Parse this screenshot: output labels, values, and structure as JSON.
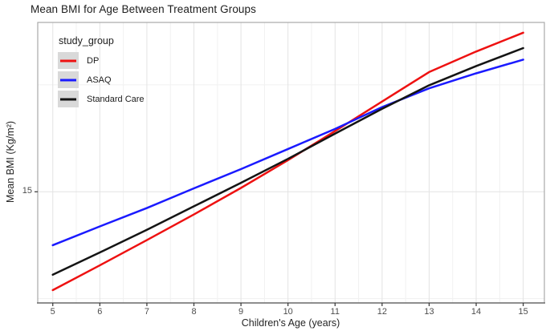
{
  "title": "Mean BMI for Age Between Treatment Groups",
  "legend": {
    "title": "study_group",
    "items": [
      {
        "label": "DP",
        "color": "#ee1111"
      },
      {
        "label": "ASAQ",
        "color": "#1a1aff"
      },
      {
        "label": "Standard Care",
        "color": "#141414"
      }
    ]
  },
  "axes": {
    "x_label": "Children's Age (years)",
    "y_label": "Mean BMI (Kg/m²)",
    "x_ticks": [
      5,
      6,
      7,
      8,
      9,
      10,
      11,
      12,
      13,
      14,
      15
    ],
    "y_ticks": [
      15
    ]
  },
  "chart_data": {
    "type": "line",
    "title": "Mean BMI for Age Between Treatment Groups",
    "xlabel": "Children's Age (years)",
    "ylabel": "Mean BMI (Kg/m²)",
    "x": [
      5,
      6,
      7,
      8,
      9,
      10,
      11,
      12,
      13,
      14,
      15
    ],
    "series": [
      {
        "name": "DP",
        "color": "#ee1111",
        "values": [
          12.7,
          13.28,
          13.87,
          14.47,
          15.09,
          15.74,
          16.42,
          17.11,
          17.8,
          18.28,
          18.72
        ]
      },
      {
        "name": "ASAQ",
        "color": "#1a1aff",
        "values": [
          13.75,
          14.19,
          14.62,
          15.08,
          15.53,
          16.0,
          16.47,
          16.98,
          17.42,
          17.77,
          18.09
        ]
      },
      {
        "name": "Standard Care",
        "color": "#141414",
        "values": [
          13.06,
          13.58,
          14.11,
          14.66,
          15.21,
          15.77,
          16.36,
          16.94,
          17.49,
          17.94,
          18.36
        ]
      }
    ],
    "xlim": [
      4.68,
      15.45
    ],
    "ylim": [
      12.4,
      18.96
    ],
    "x_major_gridlines": [
      5,
      6,
      7,
      8,
      9,
      10,
      11,
      12,
      13,
      14,
      15
    ],
    "x_minor_gridlines": [
      5.5,
      6.5,
      7.5,
      8.5,
      9.5,
      10.5,
      11.5,
      12.5,
      13.5,
      14.5
    ],
    "y_major_gridlines": [
      15
    ],
    "y_minor_gridlines": [
      12.5,
      17.5
    ],
    "grid": true,
    "legend_position": "top-left-inside",
    "colors": {
      "grid_major": "#e3e3e3",
      "grid_minor": "#f1f1f1",
      "panel_border": "#a9a9a9",
      "axis_line": "#6e6e6e",
      "tick_mark": "#333333",
      "tick_text": "#4d4d4d"
    }
  }
}
